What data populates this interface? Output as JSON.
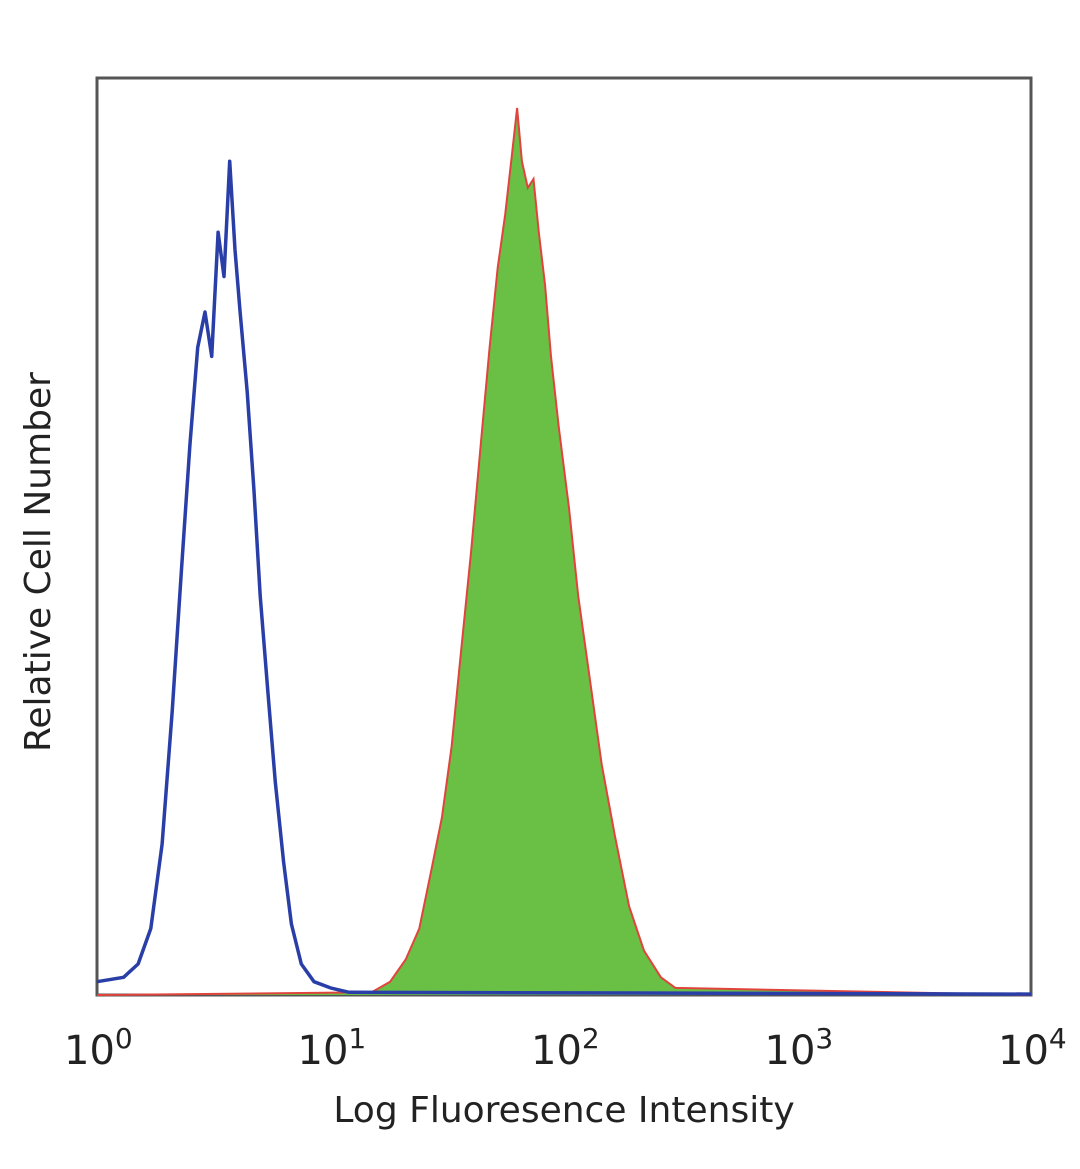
{
  "chart_data": {
    "type": "area",
    "xlabel": "Log Fluoresence Intensity",
    "ylabel": "Relative Cell Number",
    "x_scale": "log",
    "xlim": [
      1,
      10000
    ],
    "ylim": [
      0,
      100
    ],
    "grid": false,
    "x_ticks": [
      {
        "base": "10",
        "exp": "0",
        "value": 1
      },
      {
        "base": "10",
        "exp": "1",
        "value": 10
      },
      {
        "base": "10",
        "exp": "2",
        "value": 100
      },
      {
        "base": "10",
        "exp": "3",
        "value": 1000
      },
      {
        "base": "10",
        "exp": "4",
        "value": 10000
      }
    ],
    "series": [
      {
        "color": "#2a3ea8",
        "style": "outline",
        "x": [
          1.0,
          1.3,
          1.5,
          1.7,
          1.9,
          2.1,
          2.3,
          2.5,
          2.7,
          2.9,
          3.1,
          3.3,
          3.5,
          3.7,
          3.9,
          4.1,
          4.4,
          4.7,
          5.0,
          5.4,
          5.8,
          6.3,
          6.8,
          7.5,
          8.5,
          10.0,
          12.0,
          10000
        ],
        "y": [
          1.5,
          2.0,
          3.5,
          7.5,
          17,
          32,
          48,
          62,
          73,
          77,
          72,
          86,
          81,
          94,
          84,
          77,
          68,
          57,
          45,
          34,
          24,
          15,
          8,
          3.5,
          1.5,
          0.8,
          0.3,
          0.1
        ]
      },
      {
        "color": "#6abf45",
        "edge_color": "#e0443c",
        "style": "filled",
        "x": [
          1.0,
          15,
          18,
          21,
          24,
          27,
          30,
          33,
          36,
          40,
          44,
          48,
          52,
          56,
          60,
          63,
          66,
          70,
          74,
          78,
          83,
          88,
          95,
          105,
          115,
          130,
          145,
          165,
          190,
          220,
          260,
          300,
          10000
        ],
        "y": [
          0,
          0.3,
          1.5,
          4.0,
          7.5,
          14,
          20,
          28,
          38,
          50,
          62,
          73,
          82,
          88,
          95,
          100,
          94,
          91,
          92,
          86,
          80,
          72,
          64,
          55,
          45,
          35,
          26,
          18,
          10,
          5,
          2,
          0.8,
          0
        ]
      }
    ]
  }
}
